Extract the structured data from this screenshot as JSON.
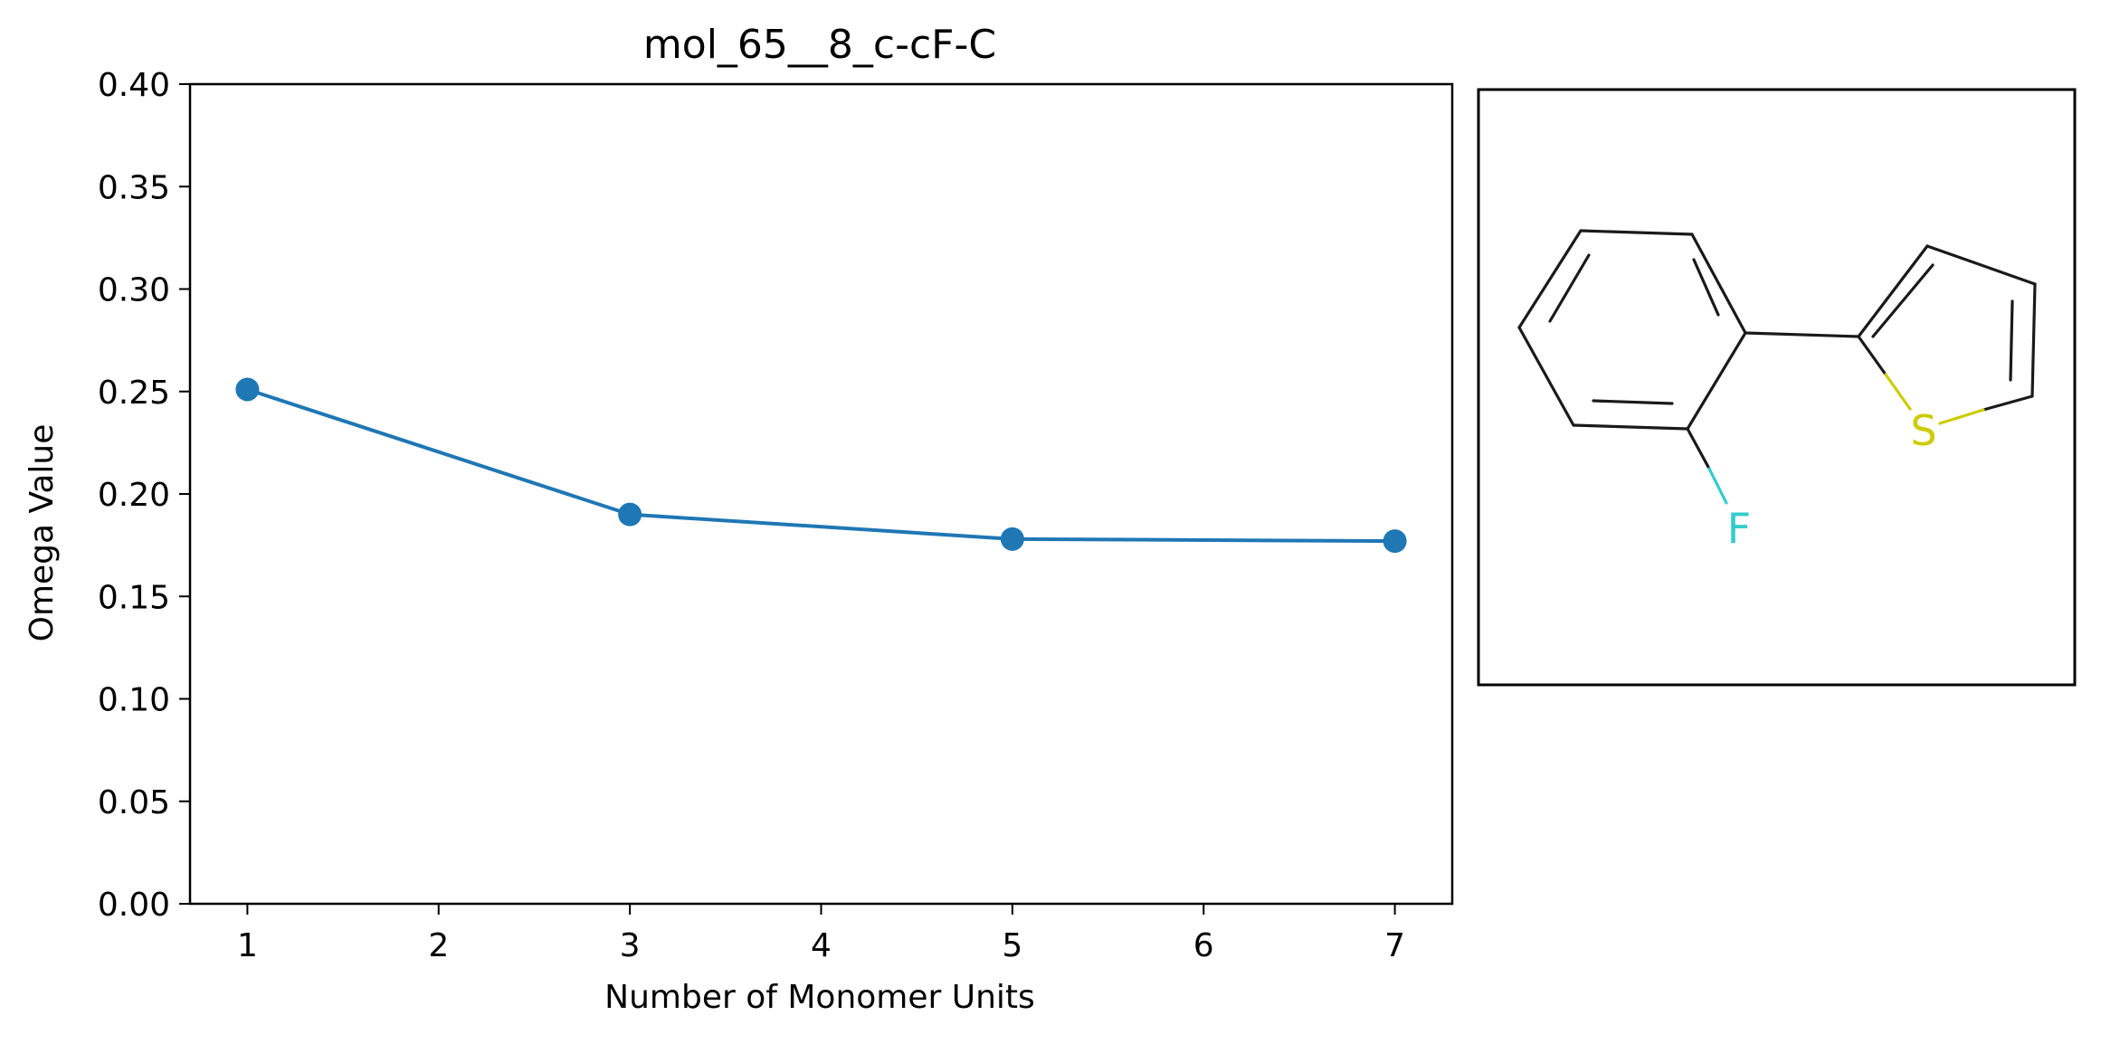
{
  "chart_data": {
    "type": "line",
    "title": "mol_65__8_c-cF-C",
    "xlabel": "Number of Monomer Units",
    "ylabel": "Omega Value",
    "xlim": [
      0.7,
      7.3
    ],
    "ylim": [
      0.0,
      0.4
    ],
    "xticks": [
      1,
      2,
      3,
      4,
      5,
      6,
      7
    ],
    "yticks": [
      0.0,
      0.05,
      0.1,
      0.15,
      0.2,
      0.25,
      0.3,
      0.35,
      0.4
    ],
    "ytick_labels": [
      "0.00",
      "0.05",
      "0.10",
      "0.15",
      "0.20",
      "0.25",
      "0.30",
      "0.35",
      "0.40"
    ],
    "grid": false,
    "series": [
      {
        "x": [
          1,
          3,
          5,
          7
        ],
        "y": [
          0.251,
          0.19,
          0.178,
          0.177
        ],
        "color": "#1f77b4",
        "marker": "circle"
      }
    ]
  },
  "molecule": {
    "atom_labels": {
      "sulfur": "S",
      "fluorine": "F"
    },
    "colors": {
      "bond": "#1a1a1a",
      "sulfur": "#cccc00",
      "fluorine": "#33cccc"
    }
  }
}
